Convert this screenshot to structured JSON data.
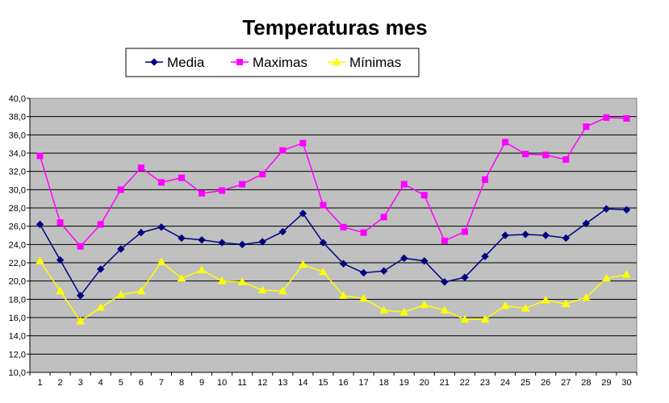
{
  "chart_data": {
    "type": "line",
    "title": "Temperaturas mes",
    "xlabel": "",
    "ylabel": "",
    "x": [
      1,
      2,
      3,
      4,
      5,
      6,
      7,
      8,
      9,
      10,
      11,
      12,
      13,
      14,
      15,
      16,
      17,
      18,
      19,
      20,
      21,
      22,
      23,
      24,
      25,
      26,
      27,
      28,
      29,
      30
    ],
    "ylim": [
      10,
      40
    ],
    "ytick_step": 2,
    "ytick_labels": [
      "10,0",
      "12,0",
      "14,0",
      "16,0",
      "18,0",
      "20,0",
      "22,0",
      "24,0",
      "26,0",
      "28,0",
      "30,0",
      "32,0",
      "34,0",
      "36,0",
      "38,0",
      "40,0"
    ],
    "grid": true,
    "legend_position": "top",
    "plot_background": "#c0c0c0",
    "series": [
      {
        "name": "Media",
        "color": "#000080",
        "marker": "diamond",
        "values": [
          26.2,
          22.3,
          18.4,
          21.3,
          23.5,
          25.3,
          25.9,
          24.7,
          24.5,
          24.2,
          24.0,
          24.3,
          25.4,
          27.4,
          24.2,
          21.9,
          20.9,
          21.1,
          22.5,
          22.2,
          19.9,
          20.4,
          22.7,
          25.0,
          25.1,
          25.0,
          24.7,
          26.3,
          27.9,
          27.8
        ]
      },
      {
        "name": "Maximas",
        "color": "#ff00ff",
        "marker": "square",
        "values": [
          33.7,
          26.4,
          23.8,
          26.2,
          30.0,
          32.4,
          30.8,
          31.3,
          29.6,
          29.9,
          30.6,
          31.7,
          34.3,
          35.1,
          28.3,
          25.9,
          25.3,
          27.0,
          30.6,
          29.4,
          24.4,
          25.4,
          31.1,
          35.2,
          33.9,
          33.8,
          33.3,
          36.9,
          37.9,
          37.8
        ]
      },
      {
        "name": "Mínimas",
        "color": "#ffff00",
        "marker": "triangle",
        "values": [
          22.2,
          18.9,
          15.6,
          17.1,
          18.5,
          18.9,
          22.1,
          20.3,
          21.2,
          20.0,
          19.9,
          19.0,
          18.9,
          21.8,
          21.0,
          18.4,
          18.1,
          16.8,
          16.6,
          17.4,
          16.8,
          15.8,
          15.8,
          17.3,
          17.0,
          17.9,
          17.5,
          18.2,
          20.3,
          20.7
        ]
      }
    ]
  }
}
